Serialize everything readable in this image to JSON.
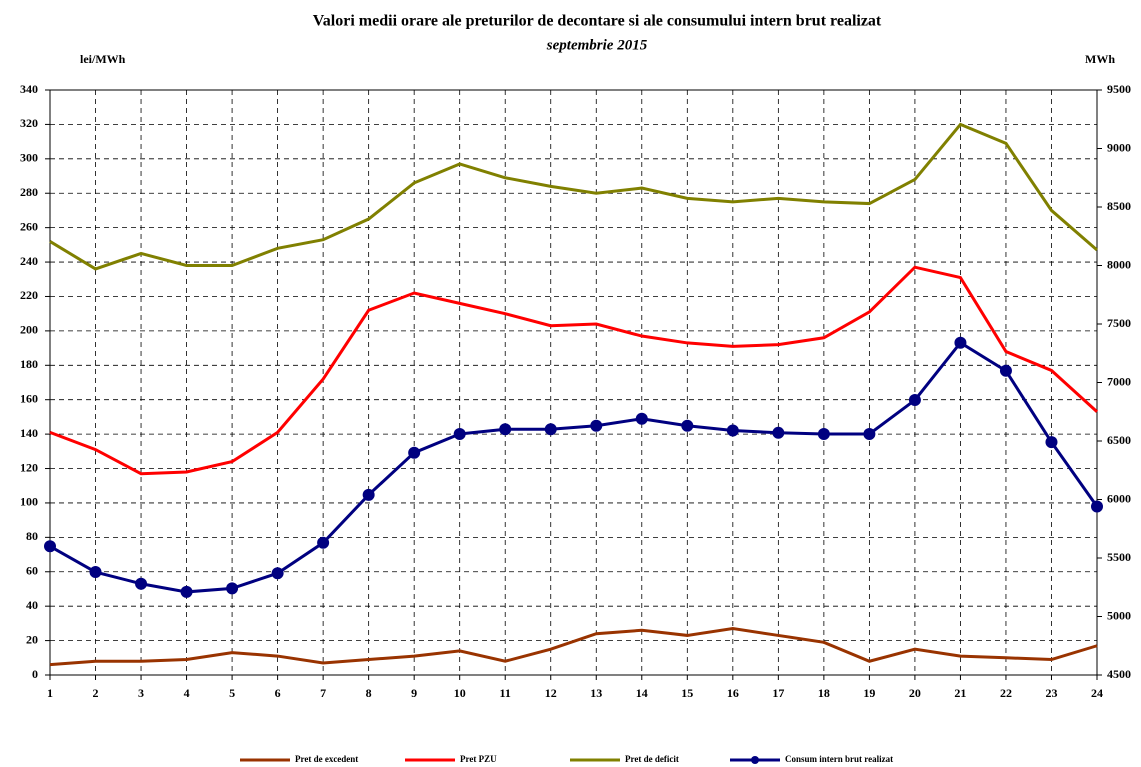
{
  "chart_data": {
    "type": "line",
    "title": "Valori medii orare ale preturilor de decontare si ale consumului intern brut realizat",
    "subtitle": "septembrie 2015",
    "y_label": "lei/MWh",
    "y2_label": "MWh",
    "x": [
      1,
      2,
      3,
      4,
      5,
      6,
      7,
      8,
      9,
      10,
      11,
      12,
      13,
      14,
      15,
      16,
      17,
      18,
      19,
      20,
      21,
      22,
      23,
      24
    ],
    "xlim": [
      1,
      24
    ],
    "xticks": [
      1,
      2,
      3,
      4,
      5,
      6,
      7,
      8,
      9,
      10,
      11,
      12,
      13,
      14,
      15,
      16,
      17,
      18,
      19,
      20,
      21,
      22,
      23,
      24
    ],
    "ylim": [
      0,
      340
    ],
    "yticks": [
      0,
      20,
      40,
      60,
      80,
      100,
      120,
      140,
      160,
      180,
      200,
      220,
      240,
      260,
      280,
      300,
      320,
      340
    ],
    "y2lim": [
      4500,
      9500
    ],
    "y2ticks": [
      4500,
      5000,
      5500,
      6000,
      6500,
      7000,
      7500,
      8000,
      8500,
      9000,
      9500
    ],
    "grid": true,
    "legend": "bottom",
    "series": [
      {
        "name": "Pret de excedent",
        "color": "#993300",
        "values": [
          6,
          8,
          8,
          9,
          13,
          11,
          7,
          9,
          11,
          14,
          8,
          15,
          24,
          26,
          23,
          27,
          23,
          19,
          8,
          15,
          11,
          10,
          9,
          17
        ]
      },
      {
        "name": "Pret PZU",
        "color": "#ff0000",
        "values": [
          141,
          131,
          117,
          118,
          124,
          141,
          172,
          212,
          222,
          216,
          210,
          203,
          204,
          197,
          193,
          191,
          192,
          196,
          211,
          237,
          231,
          188,
          177,
          153
        ]
      },
      {
        "name": "Pret de deficit",
        "color": "#808000",
        "values": [
          252,
          236,
          245,
          238,
          238,
          248,
          253,
          265,
          286,
          297,
          289,
          284,
          280,
          283,
          277,
          275,
          277,
          275,
          274,
          288,
          320,
          309,
          270,
          247
        ]
      },
      {
        "name": "Consum intern brut realizat",
        "color": "#000080",
        "axis": "y2",
        "markers": true,
        "values": [
          5600,
          5380,
          5280,
          5210,
          5240,
          5370,
          5630,
          6040,
          6400,
          6560,
          6600,
          6600,
          6630,
          6690,
          6630,
          6590,
          6570,
          6560,
          6560,
          6850,
          7340,
          7100,
          6490,
          5940
        ]
      }
    ]
  }
}
